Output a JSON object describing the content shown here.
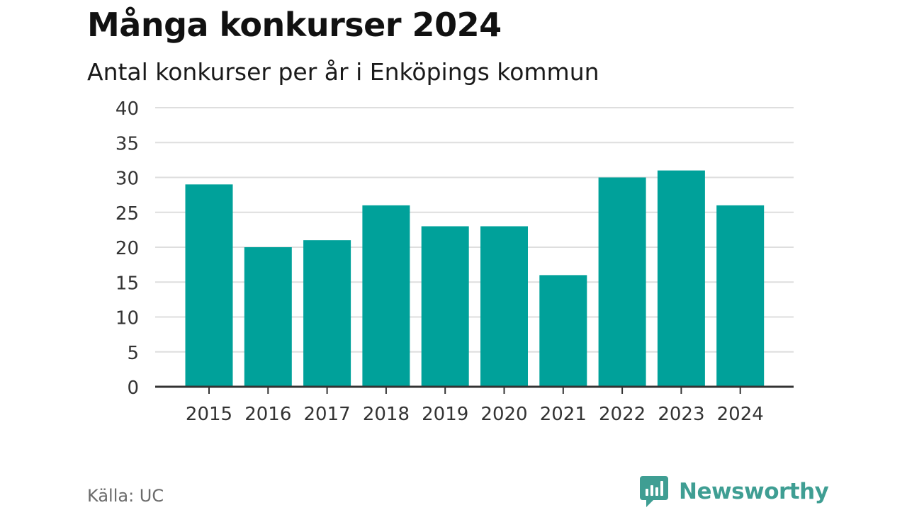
{
  "title": "Många konkurser 2024",
  "subtitle": "Antal konkurser per år i Enköpings kommun",
  "source": "Källa: UC",
  "brand": {
    "name": "Newsworthy",
    "color": "#3f9e93",
    "icon": "bar-chart-speech-bubble-icon"
  },
  "colors": {
    "bar": "#00a19a",
    "grid": "#dedede",
    "axis": "#333333",
    "tick_text": "#333333"
  },
  "chart_data": {
    "type": "bar",
    "categories": [
      "2015",
      "2016",
      "2017",
      "2018",
      "2019",
      "2020",
      "2021",
      "2022",
      "2023",
      "2024"
    ],
    "values": [
      29,
      20,
      21,
      26,
      23,
      23,
      16,
      30,
      31,
      26
    ],
    "ylim": [
      0,
      40
    ],
    "yticks": [
      0,
      5,
      10,
      15,
      20,
      25,
      30,
      35,
      40
    ],
    "grid": true,
    "xlabel": "",
    "ylabel": ""
  }
}
